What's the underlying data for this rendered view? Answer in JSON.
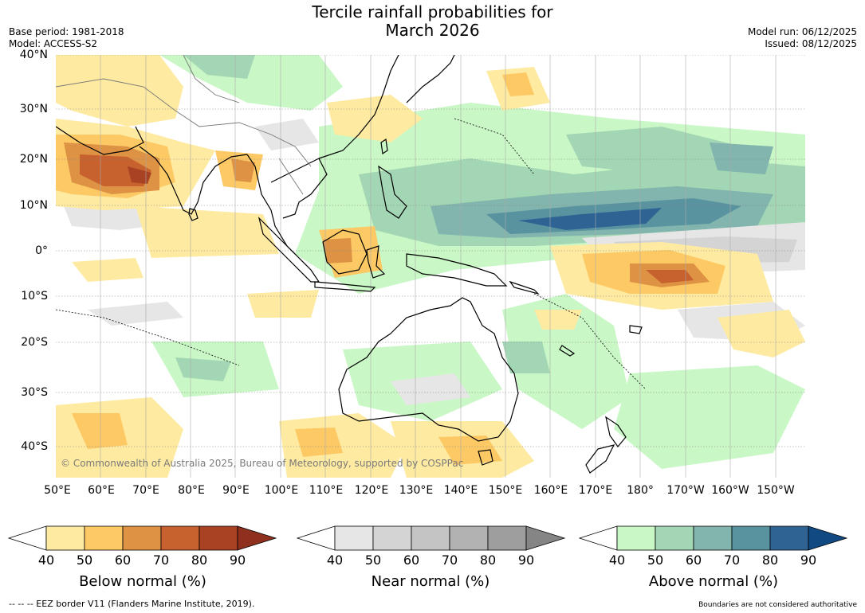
{
  "title_line1": "Tercile rainfall probabilities for",
  "title_line2": "March 2026",
  "base_period": "Base period: 1981-2018",
  "model": "Model: ACCESS-S2",
  "model_run": "Model run: 06/12/2025",
  "issued": "Issued: 08/12/2025",
  "lat_labels": [
    "40°N",
    "30°N",
    "20°N",
    "10°N",
    "0°",
    "10°S",
    "20°S",
    "30°S",
    "40°S"
  ],
  "lon_labels": [
    "50°E",
    "60°E",
    "70°E",
    "80°E",
    "90°E",
    "100°E",
    "110°E",
    "120°E",
    "130°E",
    "140°E",
    "150°E",
    "160°E",
    "170°E",
    "180°",
    "170°W",
    "160°W",
    "150°W"
  ],
  "copyright": "© Commonwealth of Australia 2025, Bureau of Meteorology, supported by COSPPac",
  "colorbars": {
    "below": {
      "title": "Below normal (%)",
      "ticks": [
        "40",
        "50",
        "60",
        "70",
        "80",
        "90"
      ],
      "colors": [
        "#ffffff",
        "#feeaa0",
        "#fdc965",
        "#dd9244",
        "#c7612e",
        "#a84222",
        "#8f2f1d"
      ]
    },
    "near": {
      "title": "Near normal (%)",
      "ticks": [
        "40",
        "50",
        "60",
        "70",
        "80",
        "90"
      ],
      "colors": [
        "#ffffff",
        "#e6e6e6",
        "#d4d4d4",
        "#c4c4c4",
        "#b2b2b2",
        "#9e9e9e",
        "#858585"
      ]
    },
    "above": {
      "title": "Above normal (%)",
      "ticks": [
        "40",
        "50",
        "60",
        "70",
        "80",
        "90"
      ],
      "colors": [
        "#ffffff",
        "#c9f7c6",
        "#a3d6b4",
        "#81b5ad",
        "#5a93a0",
        "#2f6394",
        "#114a82"
      ]
    }
  },
  "footer_left": "--  --  -- EEZ border V11 (Flanders Marine Institute, 2019).",
  "footer_right": "Boundaries are not considered authoritative"
}
